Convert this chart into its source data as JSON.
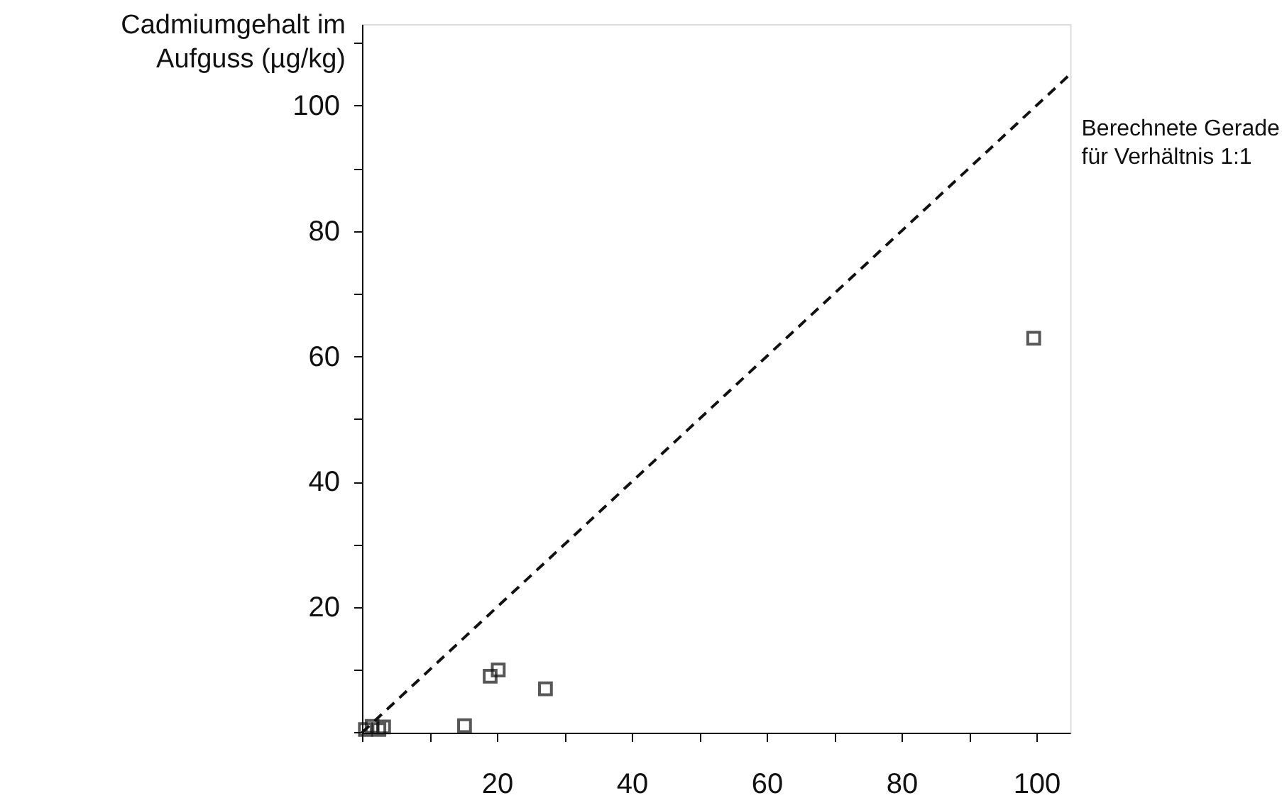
{
  "chart_data": {
    "type": "scatter",
    "ylabel": "Cadmiumgehalt im\nAufguss (µg/kg)",
    "xlim": [
      0,
      105
    ],
    "ylim": [
      0,
      113
    ],
    "xticks": [
      {
        "value": 0,
        "label": null
      },
      {
        "value": 10,
        "label": null
      },
      20,
      {
        "value": 30,
        "label": null
      },
      40,
      {
        "value": 50,
        "label": null
      },
      60,
      {
        "value": 70,
        "label": null
      },
      80,
      {
        "value": 90,
        "label": null
      },
      100
    ],
    "yticks": [
      {
        "value": 0,
        "label": null
      },
      {
        "value": 10,
        "label": null
      },
      20,
      {
        "value": 30,
        "label": null
      },
      40,
      {
        "value": 50,
        "label": null
      },
      60,
      {
        "value": 70,
        "label": null
      },
      80,
      {
        "value": 90,
        "label": null
      },
      100,
      {
        "value": 110,
        "label": null
      }
    ],
    "grid": false,
    "marker": "square",
    "series": [
      {
        "color": "#111111",
        "x": [
          0.5,
          1.5,
          2.5,
          3.2,
          15.2,
          19,
          20.2,
          27.2,
          99.6
        ],
        "values": [
          0.5,
          1,
          0.5,
          0.9,
          1.1,
          9,
          10,
          7,
          62.9
        ]
      },
      {
        "name": "Berechnete Gerade\nfür Verhältnis 1:1",
        "type": "line",
        "line_style": "dashed",
        "marker": "none",
        "color": "#111111",
        "x": [
          0,
          105
        ],
        "values": [
          0,
          105
        ]
      }
    ]
  }
}
